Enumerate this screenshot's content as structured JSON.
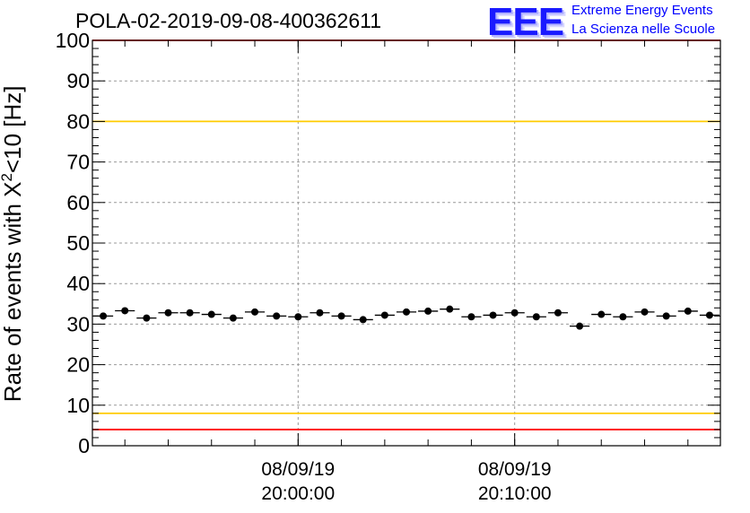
{
  "chart_data": {
    "type": "scatter",
    "title": "POLA-02-2019-09-08-400362611",
    "ylabel_prefix": "Rate of events with X",
    "ylabel_sup": "2",
    "ylabel_suffix": "<10 [Hz]",
    "ylim": [
      0,
      100
    ],
    "yticks": [
      "0",
      "10",
      "20",
      "30",
      "40",
      "50",
      "60",
      "70",
      "80",
      "90",
      "100"
    ],
    "xticks": [
      {
        "index": 9.5,
        "date": "08/09/19",
        "time": "20:00:00"
      },
      {
        "index": 19.5,
        "date": "08/09/19",
        "time": "20:10:00"
      }
    ],
    "series": [
      {
        "name": "rate",
        "values": [
          32,
          33.3,
          31.5,
          32.8,
          32.8,
          32.4,
          31.5,
          33,
          32,
          31.8,
          32.8,
          32,
          31.1,
          32.2,
          33,
          33.2,
          33.7,
          31.8,
          32.2,
          32.8,
          31.8,
          32.8,
          29.5,
          32.4,
          31.8,
          33,
          32,
          33.2,
          32.2
        ]
      }
    ],
    "reference_lines": [
      {
        "value": 100,
        "color": "#ff0000"
      },
      {
        "value": 80,
        "color": "#ffcc00"
      },
      {
        "value": 8,
        "color": "#ffcc00"
      },
      {
        "value": 4,
        "color": "#ff0000"
      }
    ],
    "grid": true
  },
  "logo": {
    "mark": "EEE",
    "line1": "Extreme Energy Events",
    "line2": "La Scienza nelle Scuole"
  }
}
